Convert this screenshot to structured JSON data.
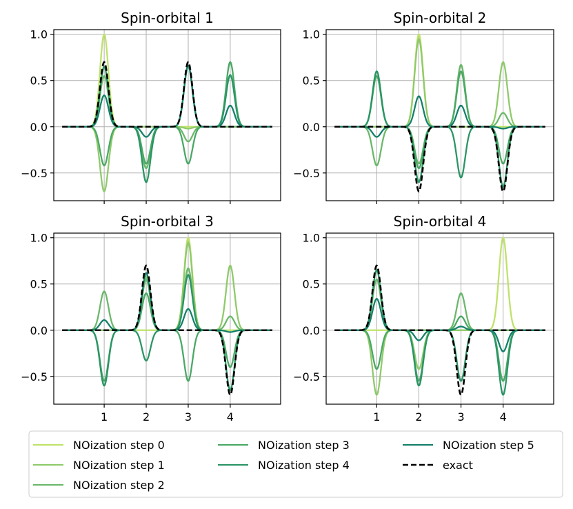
{
  "chart_data": {
    "type": "line",
    "x_positions": [
      1,
      2,
      3,
      4
    ],
    "x_range": [
      -0.2,
      5.2
    ],
    "xticks": [
      "1",
      "2",
      "3",
      "4"
    ],
    "ylim": [
      -0.8,
      1.05
    ],
    "yticks": [
      "1.0",
      "0.5",
      "0.0",
      "−0.5"
    ],
    "ytick_values": [
      1.0,
      0.5,
      0.0,
      -0.5
    ],
    "grid": true,
    "legend_position": "bottom",
    "series_styles": [
      {
        "name": "NOization step 0",
        "color": "#bfe26a",
        "dash": "solid"
      },
      {
        "name": "NOization step 1",
        "color": "#8fca6a",
        "dash": "solid"
      },
      {
        "name": "NOization step 2",
        "color": "#6ab86a",
        "dash": "solid"
      },
      {
        "name": "NOization step 3",
        "color": "#4aa865",
        "dash": "solid"
      },
      {
        "name": "NOization step 4",
        "color": "#2a9565",
        "dash": "solid"
      },
      {
        "name": "NOization step 5",
        "color": "#14806a",
        "dash": "solid"
      },
      {
        "name": "exact",
        "color": "#000000",
        "dash": "dashed"
      }
    ],
    "panels": [
      {
        "title": "Spin-orbital 1",
        "series": [
          {
            "name": "NOization step 0",
            "peaks": [
              1.0,
              0.0,
              0.0,
              0.0
            ]
          },
          {
            "name": "NOization step 1",
            "peaks": [
              -0.7,
              0.0,
              -0.02,
              0.0
            ]
          },
          {
            "name": "NOization step 2",
            "peaks": [
              0.55,
              -0.45,
              -0.16,
              0.0
            ]
          },
          {
            "name": "NOization step 3",
            "peaks": [
              -0.42,
              -0.4,
              -0.4,
              0.7
            ]
          },
          {
            "name": "NOization step 4",
            "peaks": [
              0.65,
              -0.6,
              0.66,
              0.56
            ]
          },
          {
            "name": "NOization step 5",
            "peaks": [
              0.34,
              -0.11,
              0.66,
              0.23
            ]
          },
          {
            "name": "exact",
            "peaks": [
              0.7,
              0.0,
              0.7,
              0.0
            ]
          }
        ]
      },
      {
        "title": "Spin-orbital 2",
        "series": [
          {
            "name": "NOization step 0",
            "peaks": [
              0.0,
              1.0,
              0.0,
              0.0
            ]
          },
          {
            "name": "NOization step 1",
            "peaks": [
              0.0,
              0.95,
              0.0,
              0.7
            ]
          },
          {
            "name": "NOization step 2",
            "peaks": [
              -0.42,
              -0.4,
              0.67,
              0.15
            ]
          },
          {
            "name": "NOization step 3",
            "peaks": [
              0.55,
              -0.45,
              0.6,
              -0.4
            ]
          },
          {
            "name": "NOization step 4",
            "peaks": [
              0.6,
              -0.6,
              -0.55,
              -0.65
            ]
          },
          {
            "name": "NOization step 5",
            "peaks": [
              -0.11,
              0.33,
              0.23,
              -0.02
            ]
          },
          {
            "name": "exact",
            "peaks": [
              0.0,
              -0.7,
              0.0,
              -0.7
            ]
          }
        ]
      },
      {
        "title": "Spin-orbital 3",
        "series": [
          {
            "name": "NOization step 0",
            "peaks": [
              0.0,
              0.0,
              1.0,
              0.0
            ]
          },
          {
            "name": "NOization step 1",
            "peaks": [
              0.0,
              0.58,
              0.95,
              0.7
            ]
          },
          {
            "name": "NOization step 2",
            "peaks": [
              0.42,
              0.55,
              0.67,
              0.15
            ]
          },
          {
            "name": "NOization step 3",
            "peaks": [
              -0.55,
              0.4,
              -0.55,
              -0.4
            ]
          },
          {
            "name": "NOization step 4",
            "peaks": [
              -0.6,
              -0.33,
              0.6,
              -0.65
            ]
          },
          {
            "name": "NOization step 5",
            "peaks": [
              0.11,
              0.62,
              0.23,
              -0.02
            ]
          },
          {
            "name": "exact",
            "peaks": [
              0.0,
              0.7,
              0.0,
              -0.7
            ]
          }
        ]
      },
      {
        "title": "Spin-orbital 4",
        "series": [
          {
            "name": "NOization step 0",
            "peaks": [
              0.0,
              0.0,
              0.0,
              1.0
            ]
          },
          {
            "name": "NOization step 1",
            "peaks": [
              -0.7,
              -0.42,
              0.0,
              0.0
            ]
          },
          {
            "name": "NOization step 2",
            "peaks": [
              0.55,
              0.0,
              0.4,
              0.0
            ]
          },
          {
            "name": "NOization step 3",
            "peaks": [
              -0.42,
              -0.55,
              0.15,
              -0.55
            ]
          },
          {
            "name": "NOization step 4",
            "peaks": [
              0.65,
              -0.6,
              -0.55,
              -0.7
            ]
          },
          {
            "name": "NOization step 5",
            "peaks": [
              0.34,
              -0.11,
              0.04,
              -0.23
            ]
          },
          {
            "name": "exact",
            "peaks": [
              0.7,
              0.0,
              -0.7,
              0.0
            ]
          }
        ]
      }
    ]
  }
}
